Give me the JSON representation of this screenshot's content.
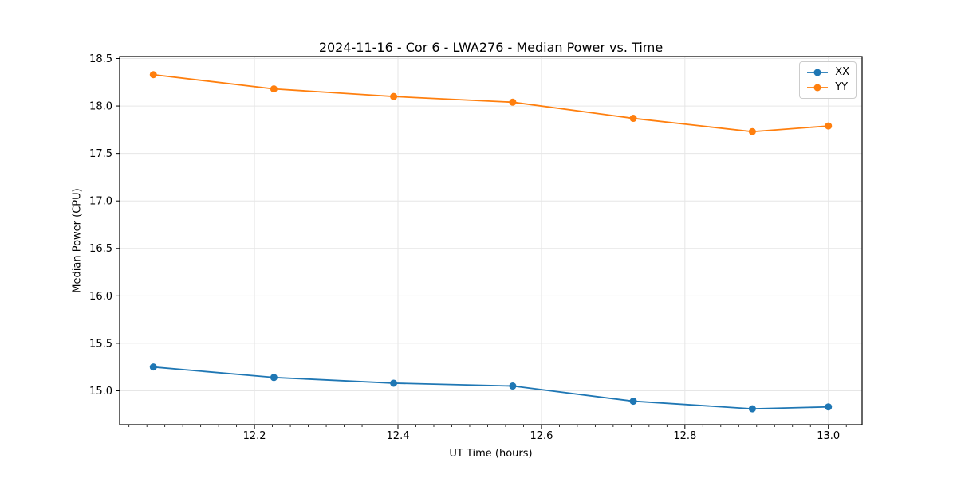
{
  "chart_data": {
    "type": "line",
    "title": "2024-11-16 - Cor 6 - LWA276 - Median Power vs. Time",
    "xlabel": "UT Time (hours)",
    "ylabel": "Median Power (CPU)",
    "x": [
      12.059,
      12.227,
      12.394,
      12.56,
      12.728,
      12.894,
      13.0
    ],
    "series": [
      {
        "name": "XX",
        "color": "#1f77b4",
        "values": [
          15.25,
          15.14,
          15.08,
          15.05,
          14.89,
          14.81,
          14.83
        ]
      },
      {
        "name": "YY",
        "color": "#ff7f0e",
        "values": [
          18.33,
          18.18,
          18.1,
          18.04,
          17.87,
          17.73,
          17.79
        ]
      }
    ],
    "xlim": [
      12.012,
      13.047
    ],
    "ylim": [
      14.643,
      18.521
    ],
    "xticks": [
      12.2,
      12.4,
      12.6,
      12.8,
      13.0
    ],
    "yticks": [
      15.0,
      15.5,
      16.0,
      16.5,
      17.0,
      17.5,
      18.0,
      18.5
    ],
    "x_minor_step": 0.025,
    "tick_decimals": 1,
    "grid": true,
    "grid_color": "#e6e6e6",
    "spine_color": "#000000",
    "legend_position": "upper right"
  }
}
